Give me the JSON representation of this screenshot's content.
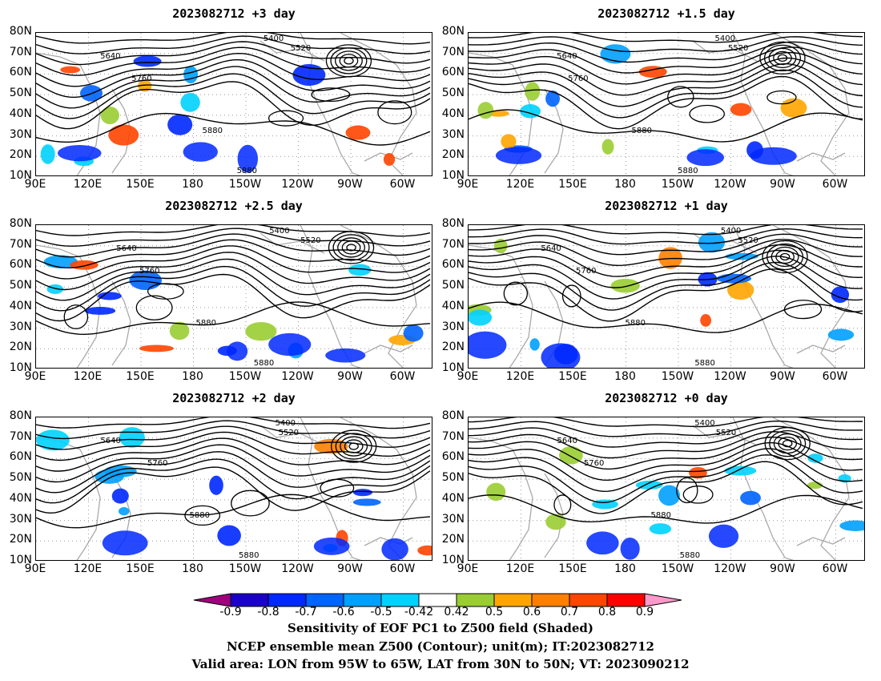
{
  "panels": [
    {
      "title": "2023082712 +3 day"
    },
    {
      "title": "2023082712 +1.5 day"
    },
    {
      "title": "2023082712 +2.5 day"
    },
    {
      "title": "2023082712 +1 day"
    },
    {
      "title": "2023082712 +2 day"
    },
    {
      "title": "2023082712 +0 day"
    }
  ],
  "lat_labels": [
    "80N",
    "70N",
    "60N",
    "50N",
    "40N",
    "30N",
    "20N",
    "10N"
  ],
  "lon_labels": [
    "90E",
    "120E",
    "150E",
    "180",
    "150W",
    "120W",
    "90W",
    "60W"
  ],
  "contour_labels": [
    "5400",
    "5520",
    "5640",
    "5760",
    "5880"
  ],
  "colorbar": {
    "ticks": [
      "-0.9",
      "-0.8",
      "-0.7",
      "-0.6",
      "-0.5",
      "-0.42",
      "0.42",
      "0.5",
      "0.6",
      "0.7",
      "0.8",
      "0.9"
    ],
    "colors": [
      "#a0007d",
      "#1a00c8",
      "#0028ff",
      "#0064ff",
      "#00a0ff",
      "#00d2ff",
      "#ffffff",
      "#9acd32",
      "#ffa500",
      "#ff7f00",
      "#ff4500",
      "#ff0000",
      "#ff99cc"
    ]
  },
  "captions": {
    "line1": "Sensitivity of EOF PC1 to Z500 field (Shaded)",
    "line2": "NCEP ensemble mean Z500 (Contour); unit(m); IT:2023082712",
    "line3": "Valid area: LON from 95W to 65W, LAT from 30N to 50N; VT: 2023090212"
  }
}
